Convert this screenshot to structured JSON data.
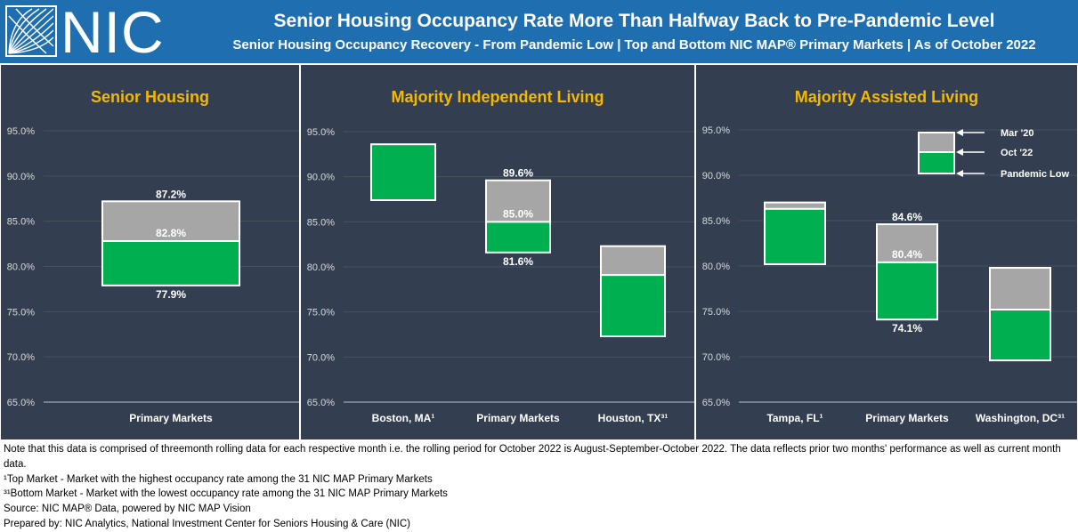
{
  "header": {
    "logo_text": "NIC",
    "title": "Senior Housing Occupancy Rate More Than Halfway Back to Pre-Pandemic Level",
    "subtitle": "Senior Housing Occupancy Recovery - From Pandemic Low  | Top and Bottom NIC MAP® Primary Markets  | As of October 2022"
  },
  "colors": {
    "header_bg": "#1f6fb0",
    "panel_bg": "#333f50",
    "panel_title": "#f5b800",
    "pandemic_to_oct": "#00b050",
    "oct_to_mar": "#a6a6a6",
    "box_outline": "#ffffff"
  },
  "chart_data": [
    {
      "type": "floating-bar",
      "title": "Senior Housing",
      "ylim": [
        65,
        95
      ],
      "y_ticks": [
        "65.0%",
        "70.0%",
        "75.0%",
        "80.0%",
        "85.0%",
        "90.0%",
        "95.0%"
      ],
      "categories": [
        "Primary Markets"
      ],
      "series": [
        {
          "name": "Pandemic Low",
          "values": [
            77.9
          ]
        },
        {
          "name": "Oct '22",
          "values": [
            82.8
          ]
        },
        {
          "name": "Mar '20",
          "values": [
            87.2
          ]
        }
      ],
      "data_labels": [
        {
          "low": "77.9%",
          "oct": "82.8%",
          "mar": "87.2%"
        }
      ]
    },
    {
      "type": "floating-bar",
      "title": "Majority Independent Living",
      "ylim": [
        65,
        95
      ],
      "y_ticks": [
        "65.0%",
        "70.0%",
        "75.0%",
        "80.0%",
        "85.0%",
        "90.0%",
        "95.0%"
      ],
      "categories": [
        "Boston, MA¹",
        "Primary Markets",
        "Houston, TX³¹"
      ],
      "series": [
        {
          "name": "Pandemic Low",
          "values": [
            87.4,
            81.6,
            72.3
          ]
        },
        {
          "name": "Oct '22",
          "values": [
            93.6,
            85.0,
            79.1
          ]
        },
        {
          "name": "Mar '20",
          "values": [
            93.6,
            89.6,
            82.3
          ]
        }
      ],
      "data_labels": [
        null,
        {
          "low": "81.6%",
          "oct": "85.0%",
          "mar": "89.6%"
        },
        null
      ]
    },
    {
      "type": "floating-bar",
      "title": "Majority Assisted Living",
      "ylim": [
        65,
        95
      ],
      "y_ticks": [
        "65.0%",
        "70.0%",
        "75.0%",
        "80.0%",
        "85.0%",
        "90.0%",
        "95.0%"
      ],
      "categories": [
        "Tampa, FL¹",
        "Primary Markets",
        "Washington, DC³¹"
      ],
      "series": [
        {
          "name": "Pandemic Low",
          "values": [
            80.2,
            74.1,
            69.6
          ]
        },
        {
          "name": "Oct '22",
          "values": [
            86.3,
            80.4,
            75.2
          ]
        },
        {
          "name": "Mar '20",
          "values": [
            87.0,
            84.6,
            79.8
          ]
        }
      ],
      "data_labels": [
        null,
        {
          "low": "74.1%",
          "oct": "80.4%",
          "mar": "84.6%"
        },
        null
      ],
      "legend": [
        "Mar '20",
        "Oct '22",
        "Pandemic Low"
      ]
    }
  ],
  "footnotes": [
    "Note that this data is comprised of threemonth rolling data for each respective month i.e. the rolling period for October 2022 is August-September-October 2022. The data reflects prior two months' performance as well as current month data.",
    "¹Top Market - Market with the highest occupancy rate among the 31 NIC MAP Primary Markets",
    "³¹Bottom Market - Market with the lowest occupancy rate among the 31 NIC MAP Primary Markets",
    "Source: NIC MAP® Data, powered by NIC MAP Vision",
    "Prepared by: NIC Analytics, National Investment Center for Seniors Housing & Care (NIC)"
  ]
}
